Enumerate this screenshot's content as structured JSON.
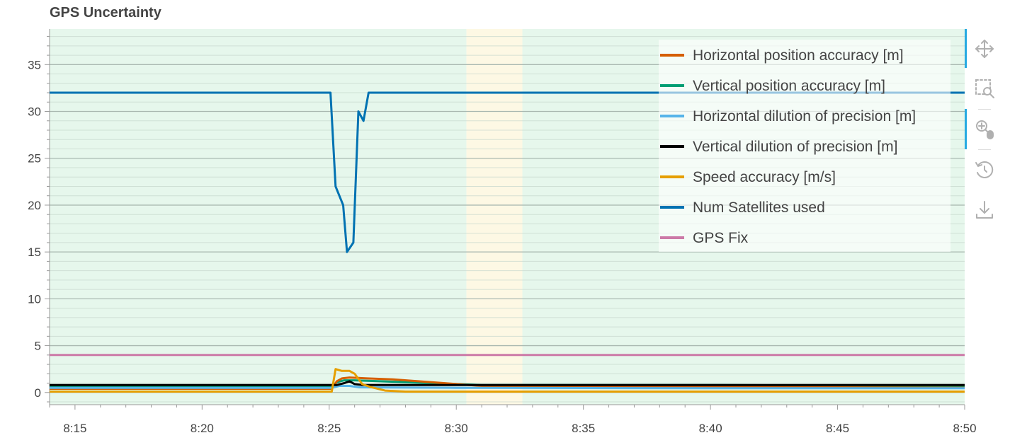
{
  "chart_data": {
    "type": "line",
    "title": "GPS Uncertainty",
    "x_ticks": [
      "8:15",
      "8:20",
      "8:25",
      "8:30",
      "8:35",
      "8:40",
      "8:45",
      "8:50"
    ],
    "x_tick_minutes": [
      15,
      20,
      25,
      30,
      35,
      40,
      45,
      50
    ],
    "xlim_minutes": [
      14,
      50
    ],
    "y_ticks": [
      0,
      5,
      10,
      15,
      20,
      25,
      30,
      35
    ],
    "ylim": [
      -1.3,
      38.8
    ],
    "grid": true,
    "legend_position": "top-right",
    "background_regions": [
      {
        "from_minute": 14,
        "to_minute": 30.4,
        "color": "#e6f7ec"
      },
      {
        "from_minute": 30.4,
        "to_minute": 32.6,
        "color": "#fdf8e4"
      },
      {
        "from_minute": 32.6,
        "to_minute": 50,
        "color": "#e6f7ec"
      }
    ],
    "series": [
      {
        "name": "Horizontal position accuracy [m]",
        "color": "#d55e00",
        "x": [
          14,
          25.1,
          25.3,
          25.5,
          25.8,
          26.5,
          27.5,
          28.5,
          29.5,
          30.5,
          31,
          40,
          50
        ],
        "y": [
          0.4,
          0.4,
          1.2,
          1.5,
          1.6,
          1.5,
          1.4,
          1.2,
          1.0,
          0.8,
          0.7,
          0.6,
          0.5
        ]
      },
      {
        "name": "Vertical position accuracy [m]",
        "color": "#009e73",
        "x": [
          14,
          25.1,
          25.3,
          25.6,
          26,
          27,
          28,
          29,
          30,
          31,
          40,
          50
        ],
        "y": [
          0.6,
          0.6,
          1.1,
          1.3,
          1.3,
          1.2,
          1.1,
          1.0,
          0.9,
          0.8,
          0.8,
          0.7
        ]
      },
      {
        "name": "Horizontal dilution of precision [m]",
        "color": "#56b4e9",
        "x": [
          14,
          25.1,
          25.4,
          25.8,
          26.2,
          30,
          40,
          50
        ],
        "y": [
          0.5,
          0.5,
          0.7,
          0.7,
          0.55,
          0.5,
          0.45,
          0.45
        ]
      },
      {
        "name": "Vertical dilution of precision [m]",
        "color": "#000000",
        "x": [
          14,
          25.1,
          25.3,
          25.6,
          25.8,
          26,
          26.3,
          27,
          30,
          40,
          50
        ],
        "y": [
          0.8,
          0.8,
          0.8,
          1.0,
          1.2,
          0.9,
          0.8,
          0.8,
          0.8,
          0.8,
          0.8
        ]
      },
      {
        "name": "Speed accuracy [m/s]",
        "color": "#e69f00",
        "x": [
          14,
          25.1,
          25.25,
          25.5,
          25.8,
          26,
          26.3,
          26.6,
          27.2,
          28,
          30,
          40,
          50
        ],
        "y": [
          0.1,
          0.1,
          2.5,
          2.3,
          2.3,
          2.0,
          0.9,
          0.6,
          0.2,
          0.1,
          0.1,
          0.1,
          0.1
        ]
      },
      {
        "name": "Num Satellites used",
        "color": "#0072b2",
        "x": [
          14,
          25.05,
          25.25,
          25.55,
          25.7,
          25.95,
          26.15,
          26.35,
          26.55,
          50
        ],
        "y": [
          32,
          32,
          22,
          20,
          15,
          16,
          30,
          29,
          32,
          32
        ]
      },
      {
        "name": "GPS Fix",
        "color": "#cc79a7",
        "x": [
          14,
          50
        ],
        "y": [
          4,
          4
        ]
      }
    ]
  },
  "toolbar": {
    "tools": [
      {
        "name": "pan-tool",
        "icon": "move-arrows-icon",
        "active": true
      },
      {
        "name": "box-zoom-tool",
        "icon": "box-zoom-icon",
        "active": false
      },
      {
        "name": "wheel-zoom-tool",
        "icon": "wheel-zoom-icon",
        "active": true
      },
      {
        "name": "reset-tool",
        "icon": "reset-icon",
        "active": false
      },
      {
        "name": "save-tool",
        "icon": "download-icon",
        "active": false
      }
    ]
  }
}
